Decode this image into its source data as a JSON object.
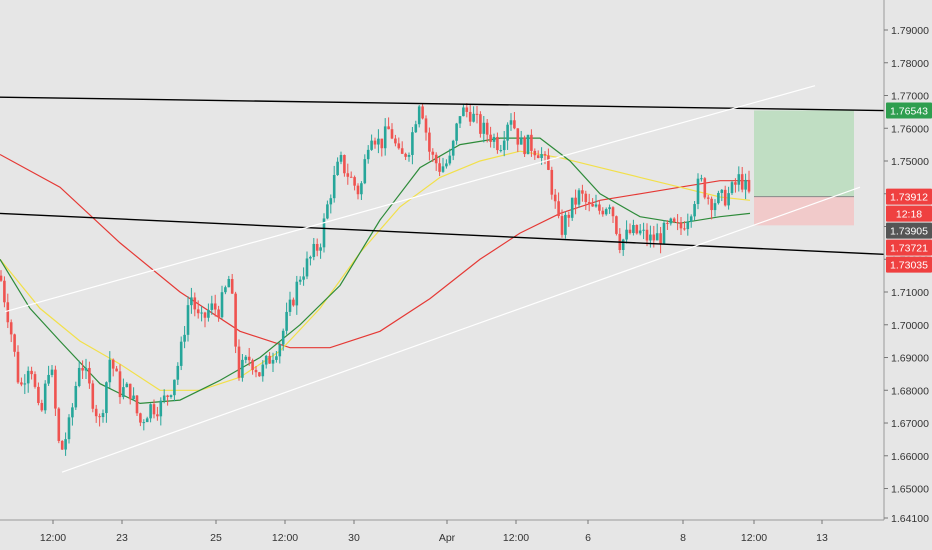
{
  "chart_data": {
    "type": "candlestick",
    "y_ticks": [
      "1.79000",
      "1.78000",
      "1.77000",
      "1.76000",
      "1.75000",
      "1.74000",
      "1.73000",
      "1.72000",
      "1.71000",
      "1.70000",
      "1.69000",
      "1.68000",
      "1.67000",
      "1.66000",
      "1.65000",
      "1.64100"
    ],
    "y_tick_values": [
      1.79,
      1.78,
      1.77,
      1.76,
      1.75,
      1.74,
      1.73,
      1.72,
      1.71,
      1.7,
      1.69,
      1.68,
      1.67,
      1.66,
      1.65,
      1.641
    ],
    "x_ticks": [
      "12:00",
      "23",
      "25",
      "12:00",
      "30",
      "Apr",
      "12:00",
      "6",
      "8",
      "12:00",
      "13"
    ],
    "ylim": [
      1.641,
      1.793
    ],
    "price_badges": [
      {
        "label": "1.76543",
        "value": 1.76543,
        "color": "#2e9e4f"
      },
      {
        "label": "1.73912",
        "value": 1.73912,
        "color": "#ef4040"
      },
      {
        "label": "12:18",
        "value": 1.7365,
        "color": "#ef4040"
      },
      {
        "label": "1.73905",
        "value": 1.73905,
        "color": "#555555"
      },
      {
        "label": "1.73721",
        "value": 1.73721,
        "color": "#ef4040"
      },
      {
        "label": "1.73035",
        "value": 1.73035,
        "color": "#ef4040"
      }
    ],
    "position": {
      "entry": 1.73912,
      "target": 1.76543,
      "stop": 1.73035
    },
    "candle_path": [
      [
        0,
        1.715
      ],
      [
        10,
        1.7
      ],
      [
        20,
        1.68
      ],
      [
        30,
        1.69
      ],
      [
        40,
        1.67
      ],
      [
        50,
        1.69
      ],
      [
        60,
        1.66
      ],
      [
        70,
        1.67
      ],
      [
        80,
        1.69
      ],
      [
        90,
        1.68
      ],
      [
        100,
        1.67
      ],
      [
        110,
        1.69
      ],
      [
        120,
        1.68
      ],
      [
        130,
        1.68
      ],
      [
        140,
        1.67
      ],
      [
        150,
        1.675
      ],
      [
        160,
        1.675
      ],
      [
        170,
        1.68
      ],
      [
        180,
        1.69
      ],
      [
        190,
        1.71
      ],
      [
        200,
        1.7
      ],
      [
        210,
        1.705
      ],
      [
        220,
        1.705
      ],
      [
        230,
        1.715
      ],
      [
        238,
        1.685
      ],
      [
        250,
        1.69
      ],
      [
        260,
        1.685
      ],
      [
        270,
        1.69
      ],
      [
        280,
        1.695
      ],
      [
        290,
        1.705
      ],
      [
        300,
        1.715
      ],
      [
        310,
        1.72
      ],
      [
        320,
        1.725
      ],
      [
        330,
        1.74
      ],
      [
        340,
        1.75
      ],
      [
        350,
        1.745
      ],
      [
        360,
        1.74
      ],
      [
        370,
        1.76
      ],
      [
        380,
        1.755
      ],
      [
        390,
        1.76
      ],
      [
        400,
        1.75
      ],
      [
        410,
        1.755
      ],
      [
        420,
        1.77
      ],
      [
        430,
        1.752
      ],
      [
        440,
        1.748
      ],
      [
        450,
        1.75
      ],
      [
        460,
        1.765
      ],
      [
        470,
        1.765
      ],
      [
        480,
        1.76
      ],
      [
        490,
        1.758
      ],
      [
        500,
        1.755
      ],
      [
        510,
        1.765
      ],
      [
        520,
        1.755
      ],
      [
        530,
        1.755
      ],
      [
        540,
        1.753
      ],
      [
        550,
        1.745
      ],
      [
        560,
        1.728
      ],
      [
        570,
        1.735
      ],
      [
        580,
        1.74
      ],
      [
        590,
        1.735
      ],
      [
        600,
        1.735
      ],
      [
        610,
        1.738
      ],
      [
        620,
        1.725
      ],
      [
        630,
        1.728
      ],
      [
        640,
        1.728
      ],
      [
        650,
        1.726
      ],
      [
        660,
        1.727
      ],
      [
        670,
        1.73
      ],
      [
        680,
        1.729
      ],
      [
        690,
        1.735
      ],
      [
        700,
        1.744
      ],
      [
        710,
        1.738
      ],
      [
        720,
        1.738
      ],
      [
        730,
        1.74
      ],
      [
        740,
        1.745
      ],
      [
        750,
        1.739
      ]
    ],
    "trendlines": [
      {
        "color": "#000000",
        "p1": [
          0,
          1.7695
        ],
        "p2": [
          884,
          1.7654
        ]
      },
      {
        "color": "#000000",
        "p1": [
          0,
          1.734
        ],
        "p2": [
          884,
          1.7215
        ]
      },
      {
        "color": "#ffffff",
        "p1": [
          5,
          1.704
        ],
        "p2": [
          815,
          1.773
        ]
      },
      {
        "color": "#ffffff",
        "p1": [
          62,
          1.655
        ],
        "p2": [
          860,
          1.742
        ]
      }
    ],
    "moving_averages": [
      {
        "color": "#e53935",
        "points": [
          [
            0,
            1.752
          ],
          [
            60,
            1.742
          ],
          [
            120,
            1.725
          ],
          [
            180,
            1.71
          ],
          [
            240,
            1.698
          ],
          [
            290,
            1.693
          ],
          [
            330,
            1.693
          ],
          [
            380,
            1.698
          ],
          [
            430,
            1.708
          ],
          [
            480,
            1.72
          ],
          [
            520,
            1.728
          ],
          [
            560,
            1.734
          ],
          [
            600,
            1.738
          ],
          [
            640,
            1.74
          ],
          [
            680,
            1.742
          ],
          [
            720,
            1.744
          ],
          [
            750,
            1.744
          ]
        ]
      },
      {
        "color": "#f2e04a",
        "points": [
          [
            0,
            1.72
          ],
          [
            40,
            1.705
          ],
          [
            80,
            1.695
          ],
          [
            120,
            1.688
          ],
          [
            160,
            1.68
          ],
          [
            200,
            1.68
          ],
          [
            240,
            1.684
          ],
          [
            280,
            1.692
          ],
          [
            320,
            1.705
          ],
          [
            360,
            1.722
          ],
          [
            400,
            1.736
          ],
          [
            440,
            1.745
          ],
          [
            480,
            1.75
          ],
          [
            520,
            1.753
          ],
          [
            560,
            1.751
          ],
          [
            600,
            1.748
          ],
          [
            640,
            1.745
          ],
          [
            680,
            1.742
          ],
          [
            720,
            1.739
          ],
          [
            750,
            1.738
          ]
        ]
      },
      {
        "color": "#2e8b3a",
        "points": [
          [
            0,
            1.72
          ],
          [
            30,
            1.705
          ],
          [
            60,
            1.695
          ],
          [
            100,
            1.682
          ],
          [
            140,
            1.676
          ],
          [
            180,
            1.677
          ],
          [
            220,
            1.683
          ],
          [
            260,
            1.69
          ],
          [
            300,
            1.7
          ],
          [
            340,
            1.712
          ],
          [
            380,
            1.732
          ],
          [
            420,
            1.748
          ],
          [
            460,
            1.755
          ],
          [
            500,
            1.757
          ],
          [
            540,
            1.757
          ],
          [
            570,
            1.75
          ],
          [
            600,
            1.74
          ],
          [
            640,
            1.733
          ],
          [
            680,
            1.731
          ],
          [
            720,
            1.733
          ],
          [
            750,
            1.734
          ]
        ]
      }
    ]
  }
}
